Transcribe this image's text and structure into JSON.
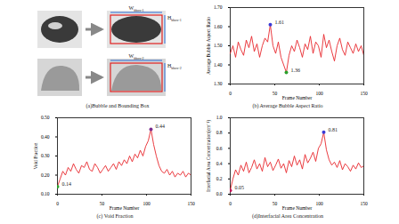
{
  "chart_data": [
    {
      "type": "line",
      "title": "(b) Average Bubble Aspect Ratio",
      "x_label": "Frame Number",
      "y_label": "Average Bubble Aspect Ratio",
      "x": [
        0,
        3,
        6,
        9,
        12,
        15,
        18,
        21,
        24,
        27,
        30,
        33,
        36,
        39,
        42,
        45,
        48,
        51,
        54,
        57,
        60,
        63,
        66,
        69,
        72,
        75,
        78,
        81,
        84,
        87,
        90,
        93,
        96,
        99,
        102,
        105,
        108,
        111,
        114,
        117,
        120,
        123,
        126,
        129,
        132,
        135,
        138,
        141,
        144,
        147,
        150
      ],
      "values": [
        1.46,
        1.5,
        1.44,
        1.52,
        1.48,
        1.45,
        1.53,
        1.49,
        1.55,
        1.47,
        1.51,
        1.44,
        1.5,
        1.54,
        1.52,
        1.61,
        1.5,
        1.46,
        1.52,
        1.44,
        1.4,
        1.36,
        1.45,
        1.5,
        1.47,
        1.53,
        1.49,
        1.44,
        1.51,
        1.48,
        1.55,
        1.46,
        1.52,
        1.5,
        1.44,
        1.56,
        1.49,
        1.53,
        1.47,
        1.42,
        1.5,
        1.54,
        1.48,
        1.45,
        1.52,
        1.49,
        1.46,
        1.51,
        1.47,
        1.5,
        1.45
      ],
      "color": "#e8262b",
      "xlim": [
        0,
        150
      ],
      "xticks": [
        0,
        50,
        100,
        150
      ],
      "ylim": [
        1.3,
        1.7
      ],
      "yticks": [
        1.3,
        1.4,
        1.5,
        1.6,
        1.7
      ],
      "annotations": [
        {
          "x": 45,
          "y": 1.61,
          "text": "1.61",
          "color": "#3b3bd6"
        },
        {
          "x": 63,
          "y": 1.36,
          "text": "1.36",
          "color": "#2ca02c"
        }
      ]
    },
    {
      "type": "line",
      "title": "(c) Void Fraction",
      "x_label": "Frame Number",
      "y_label": "Void Fraction",
      "x": [
        0,
        3,
        6,
        9,
        12,
        15,
        18,
        21,
        24,
        27,
        30,
        33,
        36,
        39,
        42,
        45,
        48,
        51,
        54,
        57,
        60,
        63,
        66,
        69,
        72,
        75,
        78,
        81,
        84,
        87,
        90,
        93,
        96,
        99,
        102,
        105,
        108,
        111,
        114,
        117,
        120,
        123,
        126,
        129,
        132,
        135,
        138,
        141,
        144,
        147,
        150
      ],
      "values": [
        0.14,
        0.18,
        0.22,
        0.2,
        0.24,
        0.22,
        0.26,
        0.23,
        0.21,
        0.25,
        0.24,
        0.27,
        0.23,
        0.22,
        0.26,
        0.24,
        0.21,
        0.23,
        0.25,
        0.22,
        0.24,
        0.26,
        0.23,
        0.27,
        0.25,
        0.28,
        0.26,
        0.3,
        0.27,
        0.31,
        0.29,
        0.33,
        0.3,
        0.35,
        0.38,
        0.44,
        0.36,
        0.3,
        0.25,
        0.22,
        0.21,
        0.23,
        0.2,
        0.22,
        0.19,
        0.21,
        0.2,
        0.22,
        0.19,
        0.21,
        0.2
      ],
      "color": "#e8262b",
      "xlim": [
        0,
        150
      ],
      "xticks": [
        0,
        50,
        100,
        150
      ],
      "ylim": [
        0.1,
        0.5
      ],
      "yticks": [
        0.1,
        0.2,
        0.3,
        0.4,
        0.5
      ],
      "annotations": [
        {
          "x": 0,
          "y": 0.14,
          "text": "0.14",
          "color": "#2ca02c"
        },
        {
          "x": 105,
          "y": 0.44,
          "text": "0.44",
          "color": "#7b2d8e"
        }
      ]
    },
    {
      "type": "line",
      "title": "(d)Interfacial Area Concentration",
      "x_label": "Frame Number",
      "y_label": "Interfacial Area Concentration(cm⁻¹)",
      "x": [
        0,
        3,
        6,
        9,
        12,
        15,
        18,
        21,
        24,
        27,
        30,
        33,
        36,
        39,
        42,
        45,
        48,
        51,
        54,
        57,
        60,
        63,
        66,
        69,
        72,
        75,
        78,
        81,
        84,
        87,
        90,
        93,
        96,
        99,
        102,
        105,
        108,
        111,
        114,
        117,
        120,
        123,
        126,
        129,
        132,
        135,
        138,
        141,
        144,
        147,
        150
      ],
      "values": [
        0.05,
        0.2,
        0.32,
        0.25,
        0.38,
        0.3,
        0.42,
        0.28,
        0.35,
        0.45,
        0.33,
        0.4,
        0.3,
        0.48,
        0.36,
        0.42,
        0.31,
        0.38,
        0.46,
        0.34,
        0.4,
        0.28,
        0.44,
        0.36,
        0.5,
        0.38,
        0.45,
        0.33,
        0.52,
        0.41,
        0.47,
        0.55,
        0.43,
        0.6,
        0.66,
        0.81,
        0.58,
        0.45,
        0.38,
        0.42,
        0.35,
        0.44,
        0.32,
        0.4,
        0.36,
        0.3,
        0.38,
        0.33,
        0.41,
        0.35,
        0.37
      ],
      "color": "#e8262b",
      "xlim": [
        0,
        150
      ],
      "xticks": [
        0,
        50,
        100,
        150
      ],
      "ylim": [
        0,
        1
      ],
      "yticks": [
        0,
        0.2,
        0.4,
        0.6,
        0.8,
        1
      ],
      "annotations": [
        {
          "x": 0,
          "y": 0.05,
          "text": "0.05",
          "color": "#c2185b"
        },
        {
          "x": 105,
          "y": 0.81,
          "text": "0.81",
          "color": "#3b3bd6"
        }
      ]
    }
  ],
  "panel_a": {
    "caption": "(a)Bubble and Bounding Box",
    "boxes": [
      {
        "width_label": {
          "main": "W",
          "sub": "bbox-1"
        },
        "height_label": {
          "main": "H",
          "sub": "bbox-1"
        }
      },
      {
        "width_label": {
          "main": "W",
          "sub": "bbox-2"
        },
        "height_label": {
          "main": "H",
          "sub": "bbox-2"
        }
      }
    ]
  }
}
